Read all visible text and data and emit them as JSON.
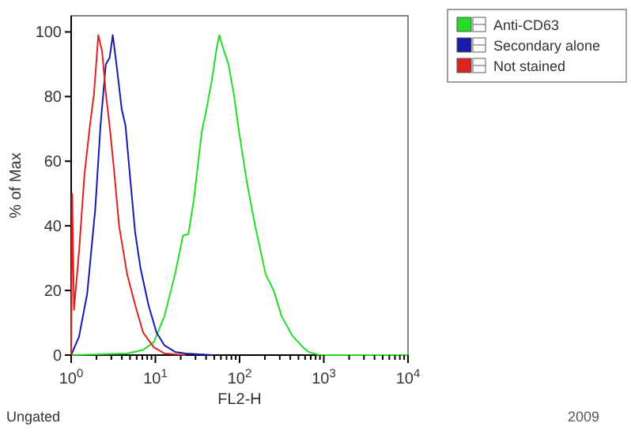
{
  "chart_data": {
    "type": "line",
    "xlabel": "FL2-H",
    "ylabel": "% of Max",
    "log": "x",
    "xlim": [
      1,
      10000
    ],
    "ylim": [
      0,
      105
    ],
    "xticks": [
      {
        "value": 1,
        "label": "10$^{0}$"
      },
      {
        "value": 2,
        "label": null
      },
      {
        "value": 3,
        "label": null
      },
      {
        "value": 4,
        "label": null
      },
      {
        "value": 5,
        "label": null
      },
      {
        "value": 6,
        "label": null
      },
      {
        "value": 7,
        "label": null
      },
      {
        "value": 8,
        "label": null
      },
      {
        "value": 9,
        "label": null
      },
      {
        "value": 10,
        "label": "10$^{1}$"
      },
      {
        "value": 20,
        "label": null
      },
      {
        "value": 30,
        "label": null
      },
      {
        "value": 40,
        "label": null
      },
      {
        "value": 50,
        "label": null
      },
      {
        "value": 60,
        "label": null
      },
      {
        "value": 70,
        "label": null
      },
      {
        "value": 80,
        "label": null
      },
      {
        "value": 90,
        "label": null
      },
      {
        "value": 100,
        "label": "10$^{2}$"
      },
      {
        "value": 200,
        "label": null
      },
      {
        "value": 300,
        "label": null
      },
      {
        "value": 400,
        "label": null
      },
      {
        "value": 500,
        "label": null
      },
      {
        "value": 600,
        "label": null
      },
      {
        "value": 700,
        "label": null
      },
      {
        "value": 800,
        "label": null
      },
      {
        "value": 900,
        "label": null
      },
      {
        "value": 1000,
        "label": "10$^{3}$"
      },
      {
        "value": 2000,
        "label": null
      },
      {
        "value": 3000,
        "label": null
      },
      {
        "value": 4000,
        "label": null
      },
      {
        "value": 5000,
        "label": null
      },
      {
        "value": 6000,
        "label": null
      },
      {
        "value": 7000,
        "label": null
      },
      {
        "value": 8000,
        "label": null
      },
      {
        "value": 9000,
        "label": null
      },
      {
        "value": 10000,
        "label": "10$^{4}$"
      }
    ],
    "yticks": [
      0,
      20,
      40,
      60,
      80,
      100
    ],
    "grid": false,
    "legend": "top right",
    "marker": "none",
    "line_style": "solid",
    "series": [
      {
        "name": "Anti-CD63",
        "color": "#22dd22",
        "x": [
          1,
          4.62,
          7.15,
          9.57,
          12.8,
          17.1,
          21.3,
          24.7,
          28.6,
          35.5,
          41.1,
          47.5,
          53.4,
          57.5,
          63.7,
          73.6,
          85.1,
          98.6,
          123,
          153,
          204,
          254,
          316,
          423,
          566,
          655,
          815,
          877,
          10000
        ],
        "values": [
          0,
          0.5,
          1.6,
          4,
          12,
          25,
          37,
          37.5,
          48,
          69,
          77,
          86,
          95,
          99,
          95,
          90,
          81,
          69,
          53,
          40,
          25,
          20,
          12,
          6,
          2.4,
          1,
          0.3,
          0,
          0
        ]
      },
      {
        "name": "Secondary alone",
        "color": "#1a1aaa",
        "x": [
          1,
          1.24,
          1.55,
          1.93,
          2.23,
          2.58,
          2.86,
          3.12,
          3.45,
          3.99,
          4.42,
          4.97,
          5.75,
          6.65,
          8.28,
          10.3,
          12.8,
          17.1,
          22.9,
          47.6
        ],
        "values": [
          0,
          5.7,
          19,
          45,
          71,
          90,
          92,
          99,
          90,
          76,
          71,
          56,
          38,
          27,
          15.5,
          7,
          3,
          1,
          0.5,
          0
        ]
      },
      {
        "name": "Not stained",
        "color": "#dd2222",
        "x": [
          1,
          1.03,
          1.08,
          1.24,
          1.44,
          1.67,
          1.87,
          2.1,
          2.33,
          2.58,
          2.86,
          3.21,
          3.71,
          4.62,
          5.75,
          7.15,
          9.57,
          12.8,
          22.9
        ],
        "values": [
          0,
          50,
          14,
          32,
          56,
          71,
          81,
          99,
          94,
          81,
          71,
          58,
          40,
          25,
          15.5,
          7,
          2.4,
          0.5,
          0
        ]
      }
    ],
    "annotations": [
      "Ungated",
      "2009"
    ]
  }
}
